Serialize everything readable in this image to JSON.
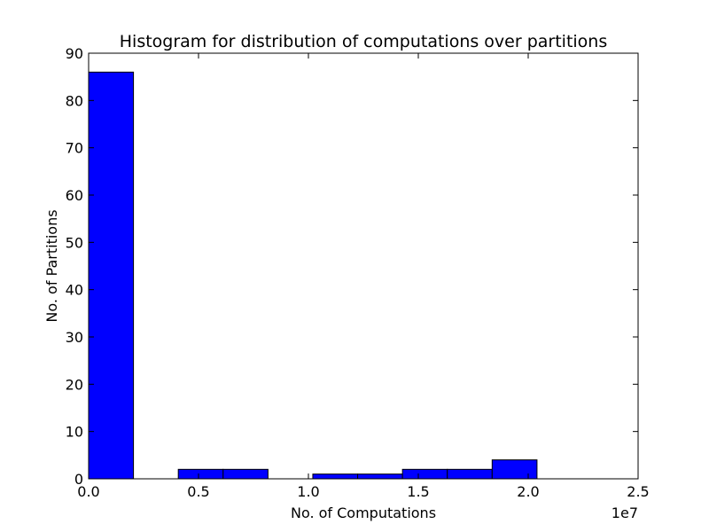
{
  "chart_data": {
    "type": "bar",
    "title": "Histogram for distribution of computations over partitions",
    "xlabel": "No. of Computations",
    "ylabel": "No. of Partitions",
    "x_offset_label": "1e7",
    "xlim": [
      0,
      2.5
    ],
    "ylim": [
      0,
      90
    ],
    "xticks": [
      0.0,
      0.5,
      1.0,
      1.5,
      2.0,
      2.5
    ],
    "xtick_labels": [
      "0.0",
      "0.5",
      "1.0",
      "1.5",
      "2.0",
      "2.5"
    ],
    "yticks": [
      0,
      10,
      20,
      30,
      40,
      50,
      60,
      70,
      80,
      90
    ],
    "ytick_labels": [
      "0",
      "10",
      "20",
      "30",
      "40",
      "50",
      "60",
      "70",
      "80",
      "90"
    ],
    "bin_edges": [
      0.0,
      0.204,
      0.408,
      0.612,
      0.816,
      1.02,
      1.224,
      1.428,
      1.632,
      1.836,
      2.04
    ],
    "values": [
      86,
      0,
      2,
      2,
      0,
      1,
      1,
      2,
      2,
      4
    ],
    "bar_color": "#0000ff",
    "edge_color": "#000000",
    "grid": false,
    "legend": "none"
  }
}
